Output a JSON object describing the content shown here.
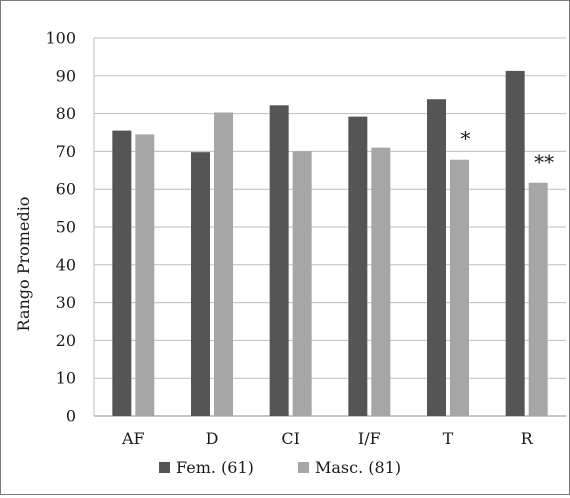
{
  "chart_data": {
    "type": "bar",
    "title": "",
    "xlabel": "",
    "ylabel": "Rango Promedio",
    "ylim": [
      0,
      100
    ],
    "yticks": [
      0,
      10,
      20,
      30,
      40,
      50,
      60,
      70,
      80,
      90,
      100
    ],
    "grid": true,
    "legend_position": "bottom",
    "categories": [
      "AF",
      "D",
      "CI",
      "I/F",
      "T",
      "R"
    ],
    "series": [
      {
        "name": "Fem. (61)",
        "color": "#555555",
        "values": [
          75.5,
          69.8,
          82.2,
          79.2,
          83.8,
          91.3
        ]
      },
      {
        "name": "Masc. (81)",
        "color": "#a6a6a6",
        "values": [
          74.5,
          80.3,
          70.0,
          71.0,
          67.8,
          61.7
        ]
      }
    ],
    "annotations": [
      {
        "category": "T",
        "series": "Masc. (81)",
        "text": "*"
      },
      {
        "category": "R",
        "series": "Masc. (81)",
        "text": "**"
      }
    ]
  }
}
